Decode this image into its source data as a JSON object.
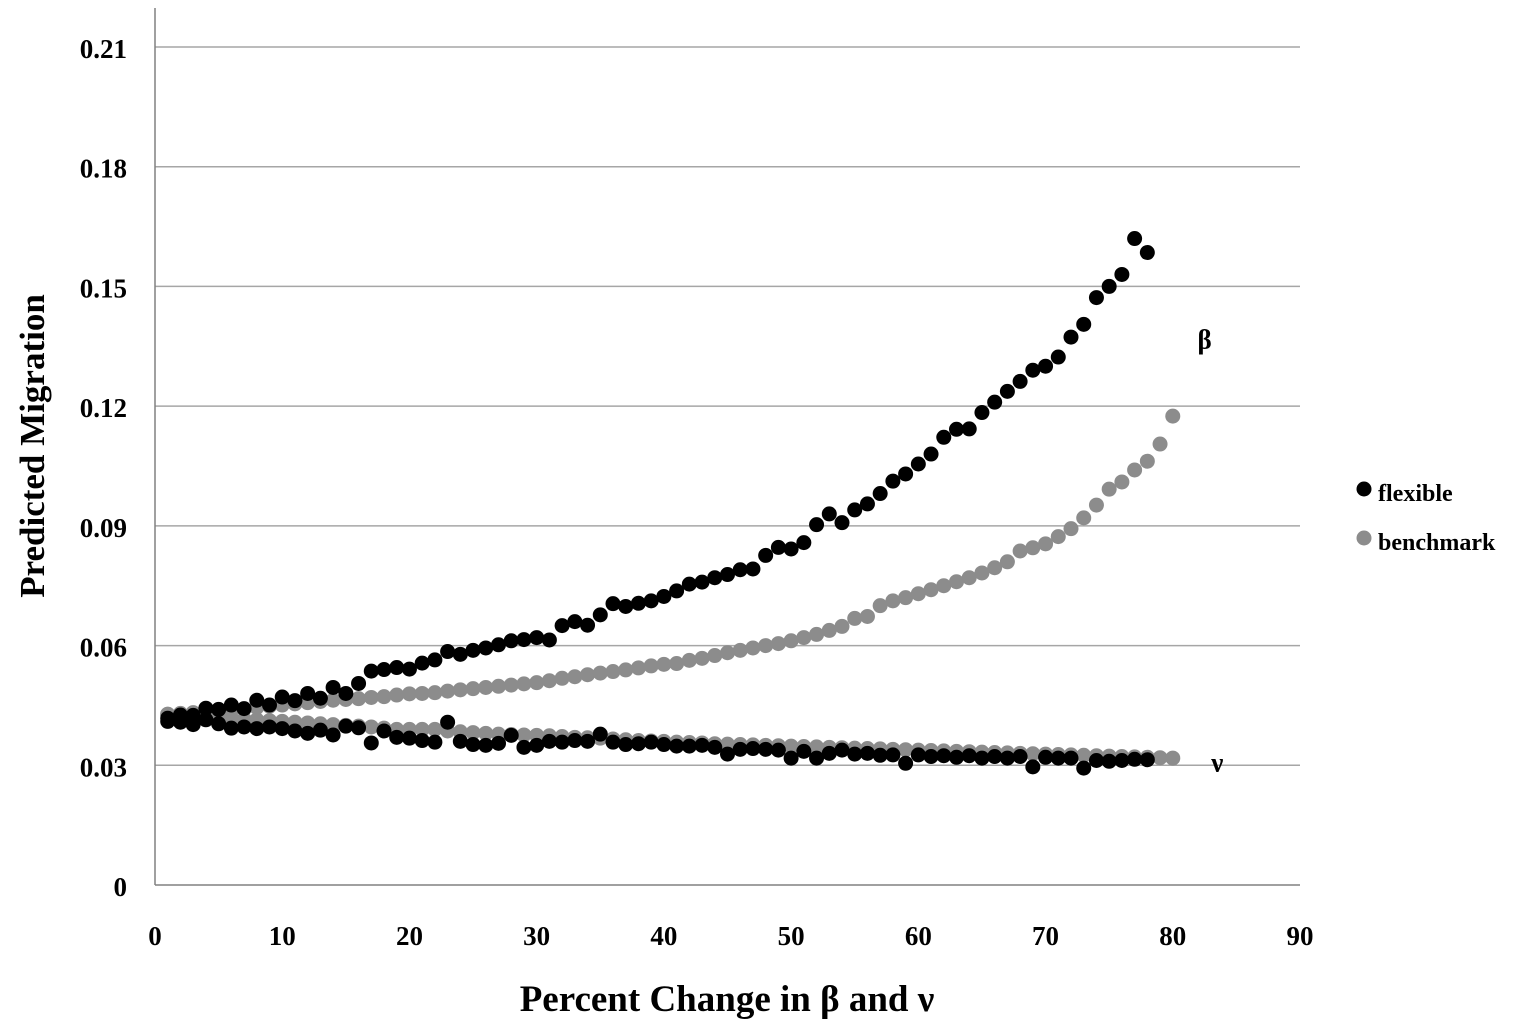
{
  "chart_data": {
    "type": "scatter",
    "title": "",
    "xlabel": "Percent Change in β and ν",
    "ylabel": "Predicted Migration",
    "xlim": [
      0,
      90
    ],
    "ylim": [
      0,
      0.21
    ],
    "x_ticks": [
      0,
      10,
      20,
      30,
      40,
      50,
      60,
      70,
      80,
      90
    ],
    "y_ticks": [
      0,
      0.03,
      0.06,
      0.09,
      0.12,
      0.15,
      0.18,
      0.21
    ],
    "y_tick_labels": [
      "0",
      "0.03",
      "0.06",
      "0.09",
      "0.12",
      "0.15",
      "0.18",
      "0.21"
    ],
    "grid": "horizontal",
    "legend_position": "right",
    "legend": [
      "flexible",
      "benchmark"
    ],
    "colors": {
      "flexible": "#000000",
      "benchmark": "#8c8c8c",
      "grid": "#a6a6a6",
      "axis": "#808080"
    },
    "annotations": [
      {
        "text": "β",
        "x": 82.5,
        "y": 0.137
      },
      {
        "text": "ν",
        "x": 83.5,
        "y": 0.031
      }
    ],
    "series": [
      {
        "name": "flexible",
        "groups": [
          {
            "label": "β",
            "x": [
              1,
              2,
              3,
              4,
              5,
              6,
              7,
              8,
              9,
              10,
              11,
              12,
              13,
              14,
              15,
              16,
              17,
              18,
              19,
              20,
              21,
              22,
              23,
              24,
              25,
              26,
              27,
              28,
              29,
              30,
              31,
              32,
              33,
              34,
              35,
              36,
              37,
              38,
              39,
              40,
              41,
              42,
              43,
              44,
              45,
              46,
              47,
              48,
              49,
              50,
              51,
              52,
              53,
              54,
              55,
              56,
              57,
              58,
              59,
              60,
              61,
              62,
              63,
              64,
              65,
              66,
              67,
              68,
              69,
              70,
              71,
              72,
              73,
              74,
              75,
              76,
              77,
              78
            ],
            "y": [
              0.0418,
              0.0426,
              0.0425,
              0.0443,
              0.044,
              0.0451,
              0.0442,
              0.0463,
              0.0451,
              0.0471,
              0.0462,
              0.048,
              0.0468,
              0.0495,
              0.048,
              0.0505,
              0.0536,
              0.054,
              0.0545,
              0.0541,
              0.0556,
              0.0564,
              0.0585,
              0.0578,
              0.0588,
              0.0594,
              0.0602,
              0.0612,
              0.0615,
              0.062,
              0.0614,
              0.065,
              0.066,
              0.0651,
              0.0677,
              0.0705,
              0.0698,
              0.0706,
              0.0712,
              0.0723,
              0.0737,
              0.0754,
              0.0759,
              0.077,
              0.0778,
              0.079,
              0.0792,
              0.0826,
              0.0846,
              0.0842,
              0.0858,
              0.0903,
              0.093,
              0.0908,
              0.094,
              0.0955,
              0.0981,
              0.1012,
              0.103,
              0.1055,
              0.108,
              0.1122,
              0.1142,
              0.1143,
              0.1184,
              0.121,
              0.1237,
              0.1262,
              0.129,
              0.13,
              0.1323,
              0.1373,
              0.1405,
              0.1472,
              0.15,
              0.153,
              0.162,
              0.1585
            ]
          },
          {
            "label": "ν",
            "x": [
              1,
              2,
              3,
              4,
              5,
              6,
              7,
              8,
              9,
              10,
              11,
              12,
              13,
              14,
              15,
              16,
              17,
              18,
              19,
              20,
              21,
              22,
              23,
              24,
              25,
              26,
              27,
              28,
              29,
              30,
              31,
              32,
              33,
              34,
              35,
              36,
              37,
              38,
              39,
              40,
              41,
              42,
              43,
              44,
              45,
              46,
              47,
              48,
              49,
              50,
              51,
              52,
              53,
              54,
              55,
              56,
              57,
              58,
              59,
              60,
              61,
              62,
              63,
              64,
              65,
              66,
              67,
              68,
              69,
              70,
              71,
              72,
              73,
              74,
              75,
              76,
              77,
              78
            ],
            "y": [
              0.041,
              0.0408,
              0.0402,
              0.0414,
              0.0404,
              0.0393,
              0.0396,
              0.0392,
              0.0396,
              0.0392,
              0.0386,
              0.038,
              0.0388,
              0.0376,
              0.0398,
              0.0394,
              0.0356,
              0.0386,
              0.037,
              0.0368,
              0.0362,
              0.0358,
              0.0408,
              0.036,
              0.0352,
              0.035,
              0.0355,
              0.0375,
              0.0345,
              0.035,
              0.036,
              0.0358,
              0.0362,
              0.036,
              0.0378,
              0.0358,
              0.0352,
              0.0354,
              0.0358,
              0.0352,
              0.0348,
              0.0348,
              0.035,
              0.0345,
              0.0328,
              0.034,
              0.0342,
              0.034,
              0.0338,
              0.0318,
              0.0335,
              0.0318,
              0.033,
              0.0338,
              0.0328,
              0.033,
              0.0325,
              0.0326,
              0.0305,
              0.0326,
              0.0322,
              0.0324,
              0.032,
              0.0324,
              0.0318,
              0.0322,
              0.0318,
              0.0322,
              0.0296,
              0.032,
              0.0318,
              0.0318,
              0.0293,
              0.0312,
              0.031,
              0.0312,
              0.0315,
              0.0314
            ]
          }
        ]
      },
      {
        "name": "benchmark",
        "groups": [
          {
            "label": "β",
            "x": [
              1,
              2,
              3,
              4,
              5,
              6,
              7,
              8,
              9,
              10,
              11,
              12,
              13,
              14,
              15,
              16,
              17,
              18,
              19,
              20,
              21,
              22,
              23,
              24,
              25,
              26,
              27,
              28,
              29,
              30,
              31,
              32,
              33,
              34,
              35,
              36,
              37,
              38,
              39,
              40,
              41,
              42,
              43,
              44,
              45,
              46,
              47,
              48,
              49,
              50,
              51,
              52,
              53,
              54,
              55,
              56,
              57,
              58,
              59,
              60,
              61,
              62,
              63,
              64,
              65,
              66,
              67,
              68,
              69,
              70,
              71,
              72,
              73,
              74,
              75,
              76,
              77,
              78,
              79,
              80
            ],
            "y": [
              0.0428,
              0.043,
              0.0432,
              0.0434,
              0.0436,
              0.0437,
              0.0441,
              0.0445,
              0.0448,
              0.0451,
              0.0454,
              0.0457,
              0.046,
              0.0463,
              0.0465,
              0.0467,
              0.047,
              0.0472,
              0.0476,
              0.0479,
              0.048,
              0.0482,
              0.0486,
              0.0489,
              0.0492,
              0.0495,
              0.0498,
              0.0501,
              0.0504,
              0.0507,
              0.0512,
              0.0518,
              0.0522,
              0.0527,
              0.0531,
              0.0535,
              0.0539,
              0.0544,
              0.0549,
              0.0553,
              0.0555,
              0.0563,
              0.0568,
              0.0575,
              0.0582,
              0.0588,
              0.0594,
              0.06,
              0.0605,
              0.0612,
              0.062,
              0.0628,
              0.0638,
              0.0648,
              0.0668,
              0.0673,
              0.07,
              0.0712,
              0.072,
              0.073,
              0.074,
              0.075,
              0.076,
              0.077,
              0.0782,
              0.0795,
              0.081,
              0.0837,
              0.0845,
              0.0855,
              0.0873,
              0.0893,
              0.092,
              0.0952,
              0.0992,
              0.101,
              0.104,
              0.1062,
              0.1105,
              0.1175
            ]
          },
          {
            "label": "ν",
            "x": [
              1,
              2,
              3,
              4,
              5,
              6,
              7,
              8,
              9,
              10,
              11,
              12,
              13,
              14,
              15,
              16,
              17,
              18,
              19,
              20,
              21,
              22,
              23,
              24,
              25,
              26,
              27,
              28,
              29,
              30,
              31,
              32,
              33,
              34,
              35,
              36,
              37,
              38,
              39,
              40,
              41,
              42,
              43,
              44,
              45,
              46,
              47,
              48,
              49,
              50,
              51,
              52,
              53,
              54,
              55,
              56,
              57,
              58,
              59,
              60,
              61,
              62,
              63,
              64,
              65,
              66,
              67,
              68,
              69,
              70,
              71,
              72,
              73,
              74,
              75,
              76,
              77,
              78,
              79,
              80
            ],
            "y": [
              0.0428,
              0.0426,
              0.0424,
              0.0422,
              0.042,
              0.0418,
              0.0416,
              0.0414,
              0.0412,
              0.041,
              0.0408,
              0.0406,
              0.0404,
              0.0402,
              0.04,
              0.0398,
              0.0396,
              0.0393,
              0.039,
              0.039,
              0.039,
              0.039,
              0.0386,
              0.0384,
              0.0382,
              0.038,
              0.0378,
              0.0377,
              0.0376,
              0.0375,
              0.0374,
              0.0372,
              0.037,
              0.0369,
              0.0368,
              0.0366,
              0.0364,
              0.0362,
              0.0361,
              0.036,
              0.0358,
              0.0357,
              0.0356,
              0.0354,
              0.0353,
              0.0352,
              0.0351,
              0.035,
              0.0349,
              0.0348,
              0.0347,
              0.0346,
              0.0345,
              0.0344,
              0.0343,
              0.0342,
              0.0341,
              0.034,
              0.0339,
              0.0338,
              0.0337,
              0.0336,
              0.0335,
              0.0334,
              0.0333,
              0.0332,
              0.0331,
              0.033,
              0.0329,
              0.0328,
              0.0327,
              0.0326,
              0.0325,
              0.0324,
              0.0323,
              0.0322,
              0.0321,
              0.032,
              0.0319,
              0.0318
            ]
          }
        ]
      }
    ]
  }
}
